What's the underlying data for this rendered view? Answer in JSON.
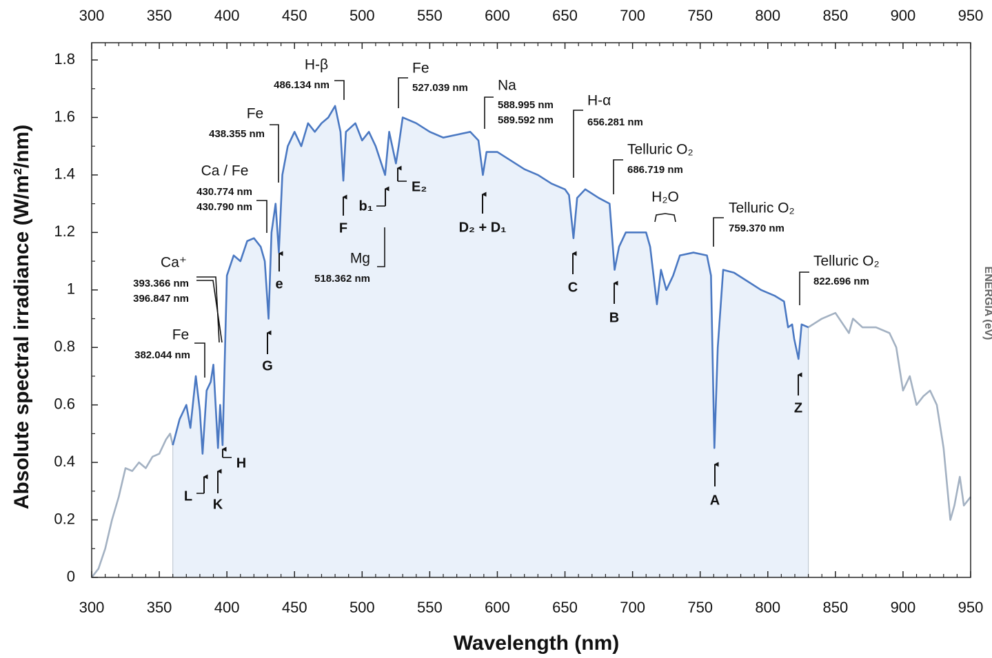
{
  "chart_data": {
    "type": "line",
    "x_label": "Wavelength (nm)",
    "y_label": "Absolute spectral irradiance (W/m²/nm)",
    "side_label": "ENERGIA (eV)",
    "xlim": [
      300,
      950
    ],
    "ylim": [
      0,
      1.86
    ],
    "xticks": [
      300,
      350,
      400,
      450,
      500,
      550,
      600,
      650,
      700,
      750,
      800,
      850,
      900,
      950
    ],
    "yticks": [
      0,
      0.2,
      0.4,
      0.6,
      0.8,
      1,
      1.2,
      1.4,
      1.6,
      1.8
    ],
    "xticks_minor": [
      310,
      320,
      330,
      340,
      360,
      370,
      380,
      390,
      410,
      420,
      430,
      440,
      460,
      470,
      480,
      490,
      510,
      520,
      530,
      540,
      560,
      570,
      580,
      590,
      610,
      620,
      630,
      640,
      660,
      670,
      680,
      690,
      710,
      720,
      730,
      740,
      760,
      770,
      780,
      790,
      810,
      820,
      830,
      840,
      860,
      870,
      880,
      890,
      910,
      920,
      930,
      940
    ],
    "yticks_minor": [
      0.1,
      0.3,
      0.5,
      0.7,
      0.9,
      1.1,
      1.3,
      1.5,
      1.7
    ],
    "x": [
      300,
      305,
      310,
      315,
      320,
      325,
      330,
      335,
      340,
      345,
      350,
      355,
      358,
      360,
      365,
      370,
      373,
      377,
      380,
      382,
      385,
      388,
      390,
      393.4,
      395,
      396.8,
      400,
      405,
      410,
      415,
      420,
      425,
      428,
      430.8,
      433,
      436,
      438.4,
      441,
      445,
      450,
      455,
      460,
      465,
      470,
      475,
      480,
      484,
      486.1,
      488,
      495,
      500,
      505,
      510,
      517,
      520,
      525,
      527,
      530,
      540,
      550,
      560,
      570,
      580,
      586,
      589.3,
      592,
      600,
      610,
      620,
      630,
      640,
      650,
      653,
      656.3,
      659,
      665,
      675,
      683,
      686.7,
      690,
      695,
      700,
      710,
      713,
      718,
      721,
      725,
      730,
      735,
      745,
      755,
      758,
      760.5,
      763,
      767,
      775,
      785,
      795,
      805,
      812,
      815,
      818,
      819.5,
      822.7,
      825,
      830,
      840,
      850,
      860,
      863,
      870,
      880,
      890,
      895,
      900,
      905,
      910,
      915,
      920,
      925,
      930,
      935,
      938,
      942,
      945,
      950
    ],
    "series": [
      {
        "color": "#a3b1c2",
        "values": [
          0,
          0.03,
          0.1,
          0.2,
          0.28,
          0.38,
          0.37,
          0.4,
          0.38,
          0.42,
          0.43,
          0.48,
          0.5,
          0.46,
          null,
          null,
          null,
          null,
          null,
          null,
          null,
          null,
          null,
          null,
          null,
          null,
          null,
          null,
          null,
          null,
          null,
          null,
          null,
          null,
          null,
          null,
          null,
          null,
          null,
          null,
          null,
          null,
          null,
          null,
          null,
          null,
          null,
          null,
          null,
          null,
          null,
          null,
          null,
          null,
          null,
          null,
          null,
          null,
          null,
          null,
          null,
          null,
          null,
          null,
          null,
          null,
          null,
          null,
          null,
          null,
          null,
          null,
          null,
          null,
          null,
          null,
          null,
          null,
          null,
          null,
          null,
          null,
          null,
          null,
          null,
          null,
          null,
          null,
          null,
          null,
          null,
          null,
          null,
          null,
          null,
          null,
          null,
          null,
          null,
          null,
          null,
          null,
          null,
          null,
          null,
          0.87,
          0.9,
          0.92,
          0.85,
          0.9,
          0.87,
          0.87,
          0.85,
          0.8,
          0.65,
          0.7,
          0.6,
          0.63,
          0.65,
          0.6,
          0.45,
          0.2,
          0.25,
          0.35,
          0.25,
          0.28
        ]
      },
      {
        "color": "#4a78c2",
        "fill_color": "#eaf1fa",
        "values": [
          null,
          null,
          null,
          null,
          null,
          null,
          null,
          null,
          null,
          null,
          null,
          null,
          null,
          0.46,
          0.55,
          0.6,
          0.52,
          0.7,
          0.58,
          0.43,
          0.65,
          0.68,
          0.74,
          0.45,
          0.6,
          0.46,
          1.05,
          1.12,
          1.1,
          1.17,
          1.18,
          1.15,
          1.1,
          0.9,
          1.2,
          1.3,
          1.13,
          1.4,
          1.5,
          1.55,
          1.5,
          1.58,
          1.55,
          1.58,
          1.6,
          1.64,
          1.55,
          1.38,
          1.55,
          1.58,
          1.52,
          1.55,
          1.5,
          1.4,
          1.55,
          1.44,
          1.5,
          1.6,
          1.58,
          1.55,
          1.53,
          1.54,
          1.55,
          1.52,
          1.4,
          1.48,
          1.48,
          1.45,
          1.42,
          1.4,
          1.37,
          1.35,
          1.33,
          1.18,
          1.32,
          1.35,
          1.32,
          1.3,
          1.07,
          1.15,
          1.2,
          1.2,
          1.2,
          1.15,
          0.95,
          1.07,
          1.0,
          1.05,
          1.12,
          1.13,
          1.12,
          1.05,
          0.45,
          0.8,
          1.07,
          1.06,
          1.03,
          1.0,
          0.98,
          0.96,
          0.87,
          0.88,
          0.83,
          0.76,
          0.88,
          0.87,
          null,
          null,
          null,
          null,
          null,
          null,
          null,
          null,
          null,
          null,
          null,
          null,
          null,
          null,
          null,
          null,
          null,
          null,
          null,
          null
        ]
      }
    ],
    "annotations": [
      {
        "name": "Fe",
        "lines": [
          "382.044 nm"
        ]
      },
      {
        "name": "Ca⁺",
        "lines": [
          "393.366 nm",
          "396.847 nm"
        ]
      },
      {
        "name": "Ca / Fe",
        "lines": [
          "430.774 nm",
          "430.790 nm"
        ]
      },
      {
        "name": "Fe",
        "lines": [
          "438.355 nm"
        ]
      },
      {
        "name": "H-β",
        "lines": [
          "486.134 nm"
        ]
      },
      {
        "name": "Fe",
        "lines": [
          "527.039 nm"
        ]
      },
      {
        "name": "Na",
        "lines": [
          "588.995 nm",
          "589.592 nm"
        ]
      },
      {
        "name": "H-α",
        "lines": [
          "656.281 nm"
        ]
      },
      {
        "name": "Telluric O₂",
        "lines": [
          "686.719 nm"
        ]
      },
      {
        "name": "Telluric O₂",
        "lines": [
          "759.370 nm"
        ]
      },
      {
        "name": "Telluric O₂",
        "lines": [
          "822.696 nm"
        ]
      },
      {
        "name": "Mg",
        "lines": [
          "518.362 nm"
        ]
      },
      {
        "name": "H₂O",
        "lines": []
      }
    ],
    "letters": [
      "L",
      "K",
      "H",
      "G",
      "e",
      "F",
      "b₁",
      "E₂",
      "D₂ + D₁",
      "C",
      "B",
      "A",
      "Z"
    ]
  }
}
